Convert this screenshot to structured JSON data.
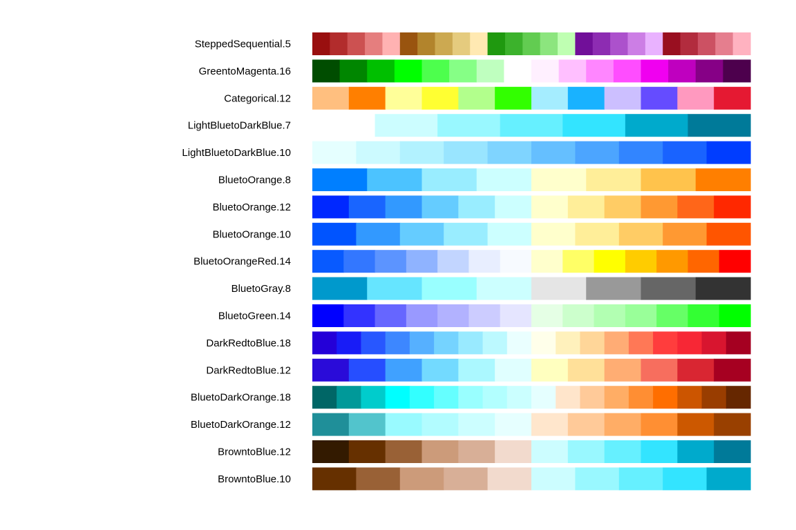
{
  "chart_data": {
    "type": "heatmap",
    "title": "",
    "xlabel": "",
    "ylabel": "",
    "palettes": [
      {
        "name": "SteppedSequential.5",
        "colors": [
          "#990F0F",
          "#B22C2C",
          "#CC5151",
          "#E57E7E",
          "#FFB2B2",
          "#99540F",
          "#B2842C",
          "#CCA951",
          "#E5CB7E",
          "#FFE9B2",
          "#1F990F",
          "#3CB22C",
          "#62CC51",
          "#8CE57E",
          "#BFFFB2",
          "#710F99",
          "#8D2CB2",
          "#AC51CC",
          "#CC7EE5",
          "#E9B2FF",
          "#990F20",
          "#B22C3E",
          "#CC5163",
          "#E57E8E",
          "#FFB2C0"
        ]
      },
      {
        "name": "GreentoMagenta.16",
        "colors": [
          "#004D00",
          "#008600",
          "#00BF00",
          "#00FF00",
          "#4DFF4D",
          "#86FF86",
          "#BFFFBF",
          "#FFFFFF",
          "#FFF0FF",
          "#FFBFFF",
          "#FF86FF",
          "#FF4DFF",
          "#F000F0",
          "#BF00BF",
          "#860086",
          "#4D004D"
        ]
      },
      {
        "name": "Categorical.12",
        "colors": [
          "#FFBF7F",
          "#FF7F00",
          "#FFFF99",
          "#FFFF32",
          "#B2FF8C",
          "#32FF00",
          "#A5EDFF",
          "#19B2FF",
          "#CCBFFF",
          "#654CFF",
          "#FF99BF",
          "#E51932"
        ]
      },
      {
        "name": "LightBluetoDarkBlue.7",
        "colors": [
          "#FFFFFF",
          "#CCFDFF",
          "#99F8FF",
          "#66F0FF",
          "#33E4FF",
          "#00AACC",
          "#007A99"
        ]
      },
      {
        "name": "LightBluetoDarkBlue.10",
        "colors": [
          "#E5FFFF",
          "#CCFAFF",
          "#B2F2FF",
          "#99E5FF",
          "#7FD4FF",
          "#65BFFF",
          "#4CA5FF",
          "#3285FF",
          "#1963FF",
          "#003DFF"
        ]
      },
      {
        "name": "BluetoOrange.8",
        "colors": [
          "#007FFF",
          "#4CC3FF",
          "#99EDFF",
          "#CCFFFF",
          "#FFFFCC",
          "#FFEE99",
          "#FFC34C",
          "#FF7F00"
        ]
      },
      {
        "name": "BluetoOrange.12",
        "colors": [
          "#0028FF",
          "#1965FF",
          "#3299FF",
          "#65CCFF",
          "#99EDFF",
          "#CCFFFF",
          "#FFFFCC",
          "#FFEE99",
          "#FFCC65",
          "#FF9932",
          "#FF6619",
          "#FF2800"
        ]
      },
      {
        "name": "BluetoOrange.10",
        "colors": [
          "#0054FF",
          "#3299FF",
          "#65CCFF",
          "#99EDFF",
          "#CCFFFF",
          "#FFFFCC",
          "#FFEE99",
          "#FFCC65",
          "#FF9932",
          "#FF5500"
        ]
      },
      {
        "name": "BluetoOrangeRed.14",
        "colors": [
          "#085AFF",
          "#3377FF",
          "#5C94FF",
          "#8FB3FF",
          "#C2D5FF",
          "#E8EEFF",
          "#F7FAFF",
          "#FFFFCC",
          "#FFFF66",
          "#FFFF00",
          "#FFCC00",
          "#FF9900",
          "#FF6600",
          "#FF0000"
        ]
      },
      {
        "name": "BluetoGray.8",
        "colors": [
          "#0099CC",
          "#66E5FF",
          "#99FFFF",
          "#CCFFFF",
          "#E5E5E5",
          "#999999",
          "#666666",
          "#333333"
        ]
      },
      {
        "name": "BluetoGreen.14",
        "colors": [
          "#0000FF",
          "#3333FF",
          "#6666FF",
          "#9999FF",
          "#B2B2FF",
          "#CCCCFF",
          "#E5E5FF",
          "#E5FFE5",
          "#CCFFCC",
          "#B2FFB2",
          "#99FF99",
          "#66FF66",
          "#33FF33",
          "#00FF00"
        ]
      },
      {
        "name": "DarkRedtoBlue.18",
        "colors": [
          "#2400D8",
          "#181CF7",
          "#2857FF",
          "#3D87FF",
          "#56B0FF",
          "#75D3FF",
          "#99EAFF",
          "#BCF9FF",
          "#EAFFFF",
          "#FFFFEA",
          "#FFF1BC",
          "#FFD699",
          "#FFAC75",
          "#FF7856",
          "#FF3D3D",
          "#F72735",
          "#D8152F",
          "#A50021"
        ]
      },
      {
        "name": "DarkRedtoBlue.12",
        "colors": [
          "#2A0BD9",
          "#264EFF",
          "#40A1FF",
          "#73DAFF",
          "#ABF8FF",
          "#E0FFFF",
          "#FFFFBF",
          "#FFE099",
          "#FFAD73",
          "#F76E5E",
          "#D92632",
          "#A60021"
        ]
      },
      {
        "name": "BluetoDarkOrange.18",
        "colors": [
          "#006666",
          "#009999",
          "#00CCCC",
          "#00FFFF",
          "#33FFFF",
          "#65FFFF",
          "#99FFFF",
          "#B2FFFF",
          "#CBFFFF",
          "#E5FFFF",
          "#FFE5CB",
          "#FFCA99",
          "#FFAD65",
          "#FF8E33",
          "#FF6E00",
          "#CC5500",
          "#993D00",
          "#662700"
        ]
      },
      {
        "name": "BluetoDarkOrange.12",
        "colors": [
          "#1F8F99",
          "#52C4CC",
          "#99FAFF",
          "#B2FCFF",
          "#CCFEFF",
          "#E6FFFF",
          "#FFE6CC",
          "#FFCA99",
          "#FFAD66",
          "#FF8F33",
          "#CC5800",
          "#994000"
        ]
      },
      {
        "name": "BrowntoBlue.12",
        "colors": [
          "#331A00",
          "#663000",
          "#996136",
          "#CC9B7A",
          "#D8AF97",
          "#F2DACD",
          "#CCFDFF",
          "#99F8FF",
          "#66F0FF",
          "#33E4FF",
          "#00AACC",
          "#007A99"
        ]
      },
      {
        "name": "BrowntoBlue.10",
        "colors": [
          "#663000",
          "#996136",
          "#CC9B7A",
          "#D8AF97",
          "#F2DACD",
          "#CCFDFF",
          "#99F8FF",
          "#66F0FF",
          "#33E4FF",
          "#00AACC"
        ]
      }
    ]
  }
}
